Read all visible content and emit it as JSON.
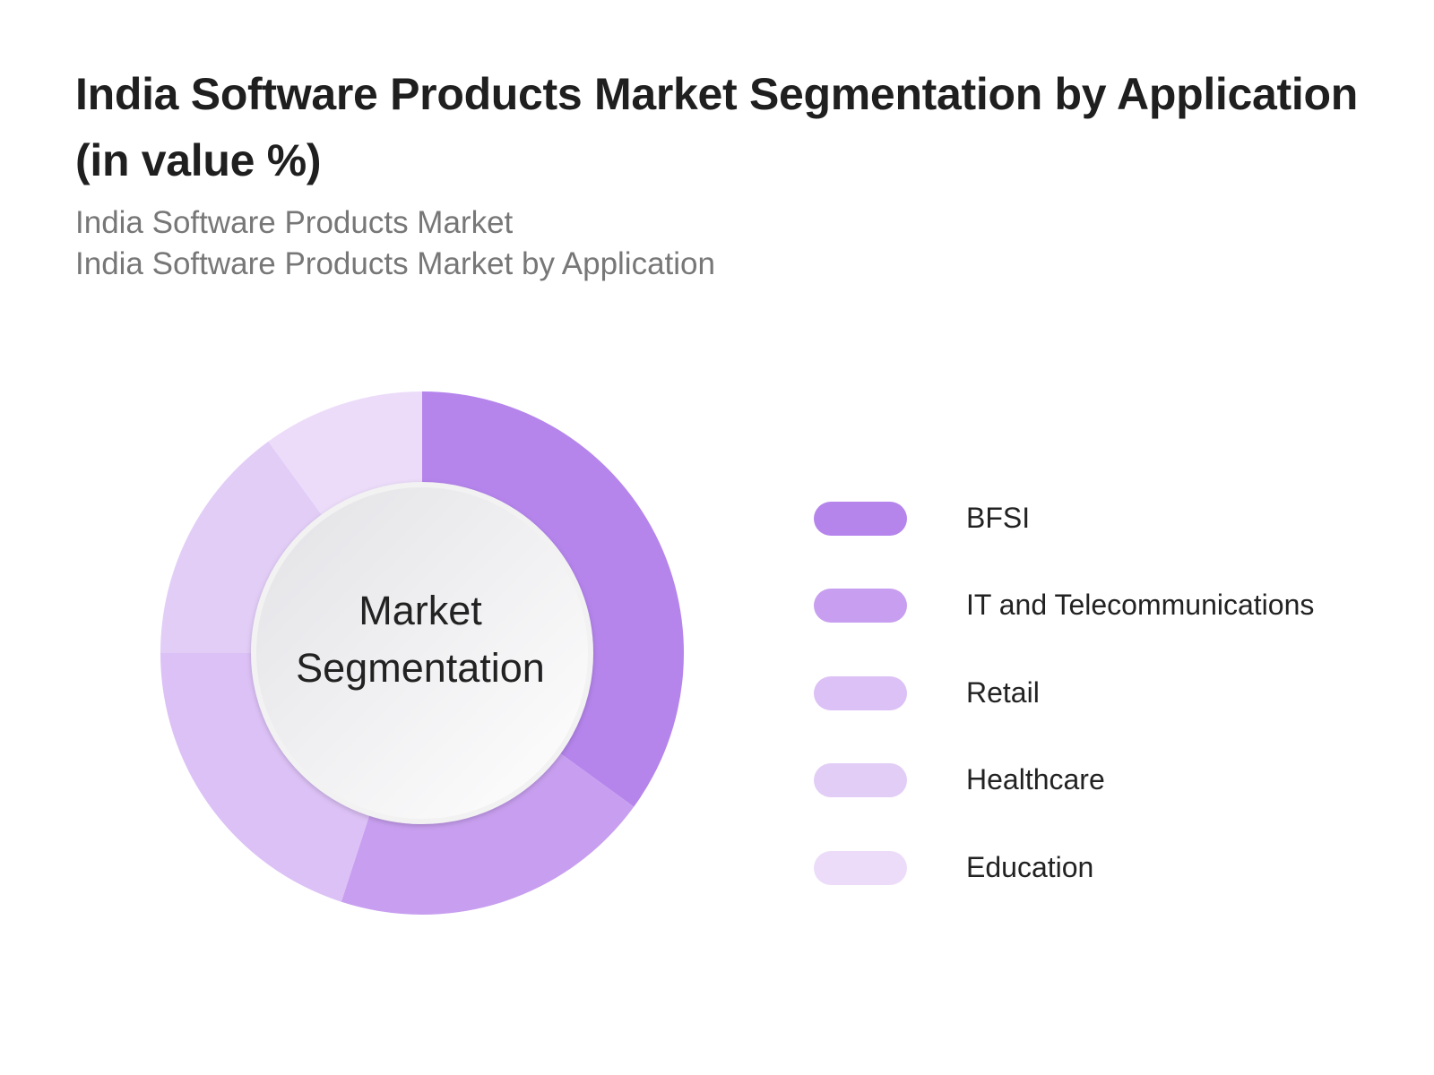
{
  "chart_data": {
    "type": "pie",
    "title": "India Software Products Market Segmentation by Application (in value %)",
    "subtitle_lines": [
      "India Software Products Market",
      "India Software Products Market by Application"
    ],
    "center_label": "Market Segmentation",
    "categories": [
      "BFSI",
      "IT and Telecommunications",
      "Retail",
      "Healthcare",
      "Education"
    ],
    "values": [
      35,
      20,
      20,
      15,
      10
    ],
    "colors": [
      "#b585ec",
      "#c89ff0",
      "#dcc1f6",
      "#e2cdf7",
      "#ecdcfa"
    ],
    "legend_position": "right"
  }
}
